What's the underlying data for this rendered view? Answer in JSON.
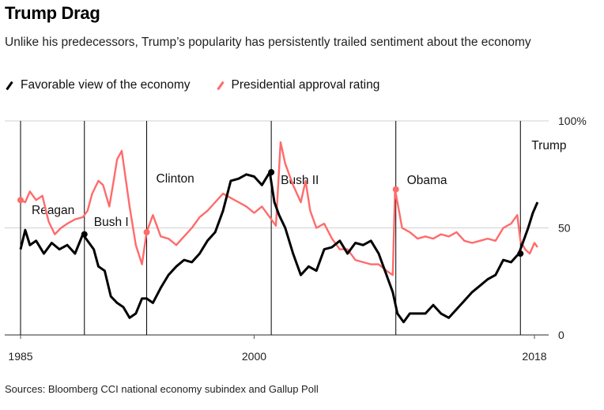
{
  "header": {
    "title": "Trump Drag",
    "subtitle": "Unlike his predecessors, Trump’s popularity has persistently trailed sentiment about the economy"
  },
  "legend": {
    "items": [
      {
        "label": "Favorable view of the economy",
        "color": "#000000"
      },
      {
        "label": "Presidential approval rating",
        "color": "#ff6b6b"
      }
    ]
  },
  "footer": {
    "source": "Sources: Bloomberg CCI national economy subindex and Gallup Poll"
  },
  "chart_data": {
    "type": "line",
    "title": "Trump Drag",
    "xlim": [
      1985,
      2018
    ],
    "ylim": [
      0,
      100
    ],
    "x_ticks": [
      "1985",
      "2000",
      "2018"
    ],
    "y_ticks": [
      "0",
      "50",
      "100%"
    ],
    "gridlines": true,
    "legend_position": "top-left",
    "annotations": [
      {
        "label": "Reagan",
        "x": 1985.0
      },
      {
        "label": "Bush I",
        "x": 1989.1
      },
      {
        "label": "Clinton",
        "x": 1993.1
      },
      {
        "label": "Bush II",
        "x": 2001.1
      },
      {
        "label": "Obama",
        "x": 2009.1
      },
      {
        "label": "Trump",
        "x": 2017.1
      }
    ],
    "series": [
      {
        "name": "Favorable view of the economy",
        "color": "#000000",
        "x": [
          1985.0,
          1985.3,
          1985.6,
          1986.0,
          1986.5,
          1987.0,
          1987.5,
          1988.0,
          1988.5,
          1989.0,
          1989.3,
          1989.7,
          1990.0,
          1990.4,
          1990.8,
          1991.2,
          1991.6,
          1992.0,
          1992.4,
          1992.8,
          1993.1,
          1993.5,
          1994.0,
          1994.5,
          1995.0,
          1995.5,
          1996.0,
          1996.5,
          1997.0,
          1997.5,
          1998.0,
          1998.5,
          1999.0,
          1999.5,
          2000.0,
          2000.5,
          2001.0,
          2001.3,
          2001.6,
          2002.0,
          2002.5,
          2003.0,
          2003.5,
          2004.0,
          2004.5,
          2005.0,
          2005.5,
          2006.0,
          2006.5,
          2007.0,
          2007.5,
          2008.0,
          2008.5,
          2008.9,
          2009.2,
          2009.6,
          2010.0,
          2010.5,
          2011.0,
          2011.5,
          2012.0,
          2012.5,
          2013.0,
          2013.5,
          2014.0,
          2014.5,
          2015.0,
          2015.5,
          2016.0,
          2016.5,
          2017.0,
          2017.3,
          2017.6,
          2017.9,
          2018.2
        ],
        "values": [
          40,
          49,
          42,
          44,
          38,
          43,
          40,
          42,
          38,
          47,
          44,
          40,
          32,
          30,
          18,
          15,
          13,
          8,
          10,
          17,
          17,
          15,
          22,
          28,
          32,
          35,
          34,
          38,
          44,
          48,
          58,
          72,
          73,
          75,
          74,
          70,
          76,
          62,
          56,
          50,
          38,
          28,
          32,
          30,
          40,
          41,
          44,
          38,
          43,
          42,
          44,
          38,
          28,
          20,
          10,
          6,
          10,
          10,
          10,
          14,
          10,
          8,
          12,
          16,
          20,
          23,
          26,
          28,
          35,
          34,
          38,
          44,
          50,
          57,
          62
        ]
      },
      {
        "name": "Presidential approval rating",
        "color": "#ff6b6b",
        "x": [
          1985.0,
          1985.3,
          1985.6,
          1986.0,
          1986.4,
          1986.8,
          1987.2,
          1987.6,
          1988.0,
          1988.5,
          1989.0,
          1989.3,
          1989.6,
          1990.0,
          1990.3,
          1990.7,
          1991.0,
          1991.2,
          1991.5,
          1992.0,
          1992.4,
          1992.8,
          1993.1,
          1993.5,
          1994.0,
          1994.5,
          1995.0,
          1995.5,
          1996.0,
          1996.5,
          1997.0,
          1997.5,
          1998.0,
          1998.5,
          1999.0,
          1999.5,
          2000.0,
          2000.5,
          2001.0,
          2001.4,
          2001.7,
          2002.0,
          2002.5,
          2003.0,
          2003.3,
          2003.6,
          2004.0,
          2004.5,
          2005.0,
          2005.5,
          2006.0,
          2006.5,
          2007.0,
          2007.5,
          2008.0,
          2008.5,
          2008.9,
          2009.05,
          2009.2,
          2009.5,
          2010.0,
          2010.5,
          2011.0,
          2011.5,
          2012.0,
          2012.5,
          2013.0,
          2013.5,
          2014.0,
          2014.5,
          2015.0,
          2015.5,
          2016.0,
          2016.5,
          2016.9,
          2017.1,
          2017.4,
          2017.7,
          2018.0,
          2018.2
        ],
        "values": [
          63,
          62,
          67,
          63,
          65,
          53,
          47,
          50,
          52,
          54,
          55,
          58,
          66,
          72,
          70,
          60,
          73,
          82,
          86,
          60,
          42,
          33,
          48,
          56,
          46,
          45,
          42,
          46,
          50,
          55,
          58,
          62,
          66,
          64,
          62,
          60,
          57,
          60,
          55,
          51,
          90,
          80,
          70,
          62,
          72,
          58,
          50,
          52,
          45,
          40,
          40,
          35,
          34,
          33,
          33,
          30,
          28,
          68,
          62,
          50,
          48,
          45,
          46,
          45,
          47,
          46,
          48,
          44,
          43,
          44,
          45,
          44,
          50,
          52,
          56,
          44,
          40,
          38,
          43,
          41
        ]
      }
    ]
  }
}
